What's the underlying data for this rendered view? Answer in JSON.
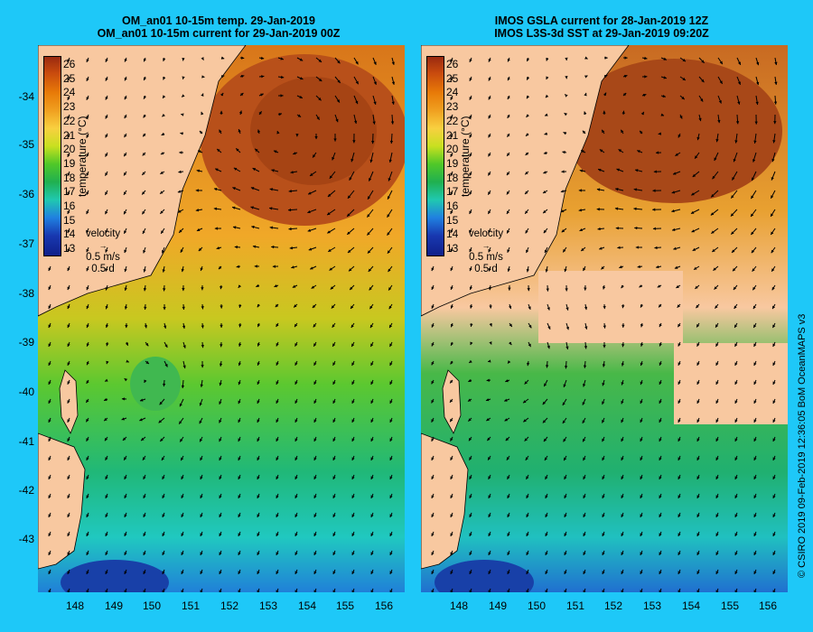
{
  "left_panel": {
    "title_line1": "OM_an01 10-15m temp. 29-Jan-2019",
    "title_line2": "OM_an01 10-15m current for 29-Jan-2019 00Z"
  },
  "right_panel": {
    "title_line1": "IMOS GSLA current for 28-Jan-2019 12Z",
    "title_line2": "IMOS L3S-3d SST at 29-Jan-2019 09:20Z"
  },
  "lat_ticks": [
    "-34",
    "-35",
    "-36",
    "-37",
    "-38",
    "-39",
    "-40",
    "-41",
    "-42",
    "-43"
  ],
  "lon_ticks": [
    "148",
    "149",
    "150",
    "151",
    "152",
    "153",
    "154",
    "155",
    "156"
  ],
  "colorbar": {
    "label": "temperature (°C)",
    "ticks": [
      "26",
      "25",
      "24",
      "23",
      "22",
      "21",
      "20",
      "19",
      "18",
      "17",
      "16",
      "15",
      "14",
      "13"
    ]
  },
  "velocity_legend": {
    "title": "velocity",
    "speed": "0.5 m/s",
    "time": "0.5 d"
  },
  "credit": "© CSIRO 2019   09-Feb-2019 12:36:05 BoM OceanMAPS v3",
  "colors": {
    "background": "#1ec8f8",
    "land": "#f8c8a0",
    "warm": "#c85a10",
    "cool": "#20c060",
    "cold": "#1030a0"
  }
}
